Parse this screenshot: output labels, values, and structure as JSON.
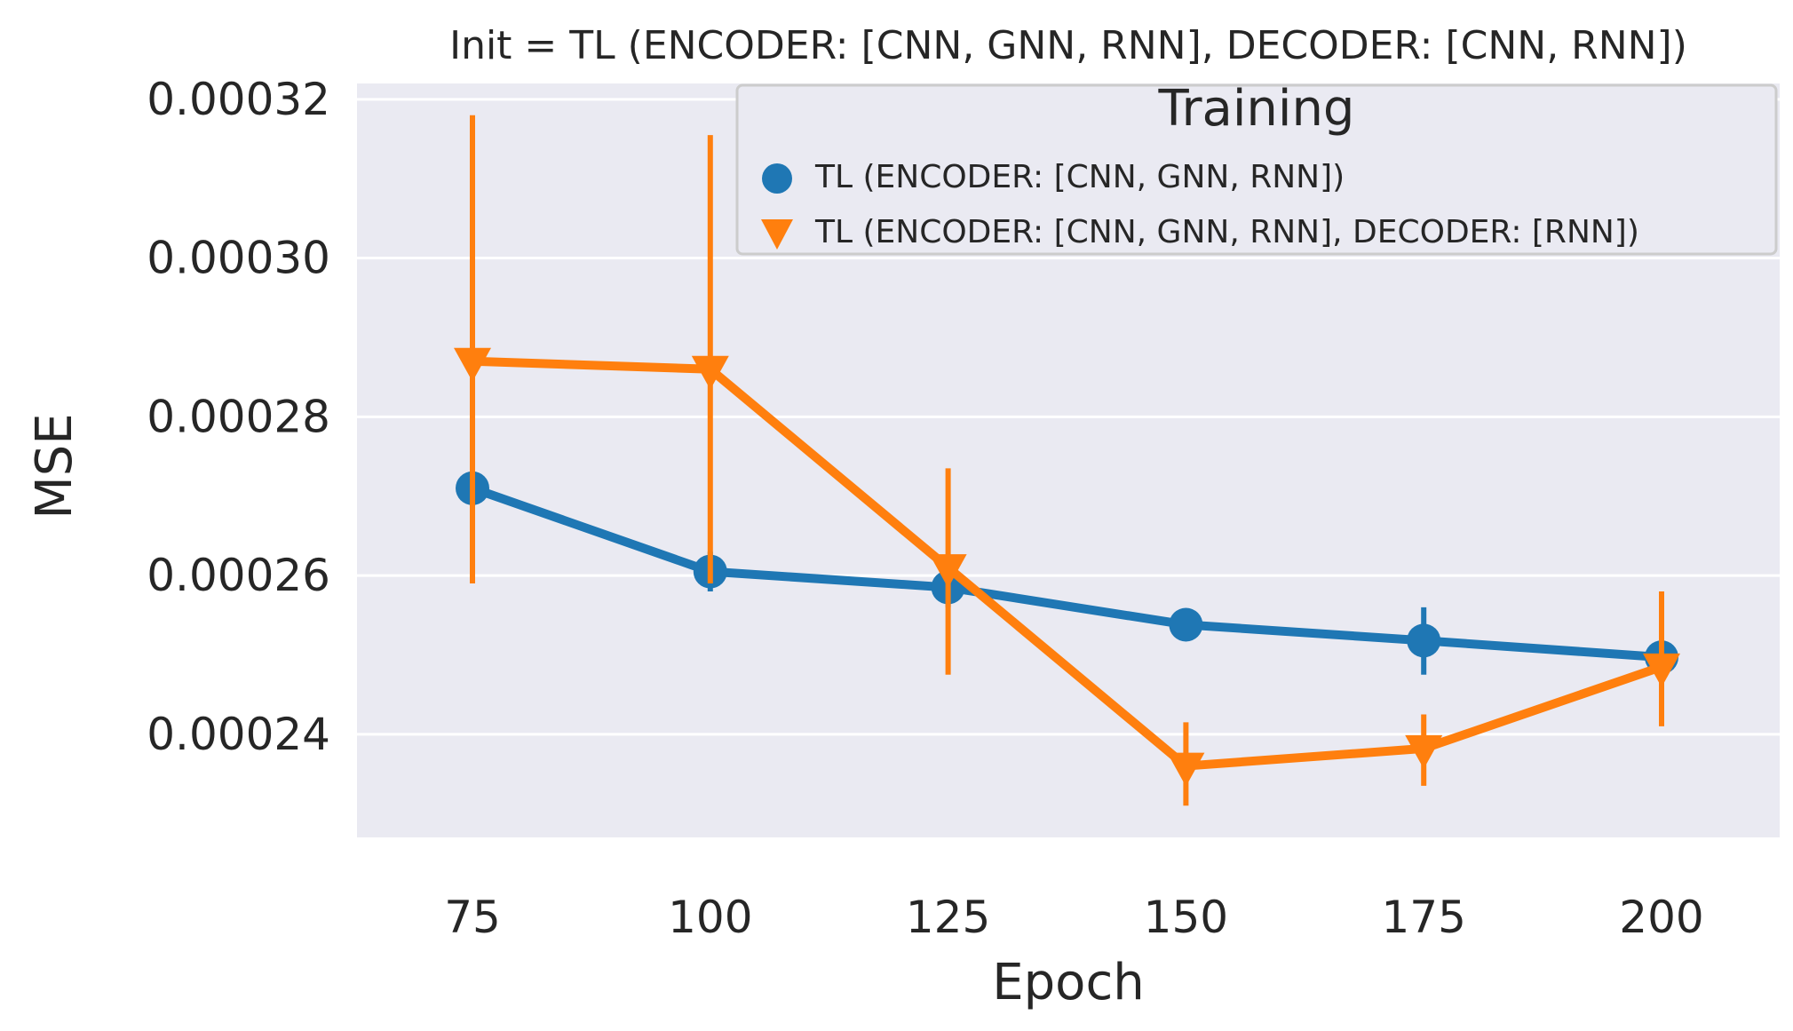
{
  "chart_data": {
    "type": "line",
    "title": "Init = TL (ENCODER: [CNN, GNN, RNN], DECODER: [CNN, RNN])",
    "xlabel": "Epoch",
    "ylabel": "MSE",
    "categories": [
      "75",
      "100",
      "125",
      "150",
      "175",
      "200"
    ],
    "ylim": [
      0.000227,
      0.000322
    ],
    "yticks": [
      0.00024,
      0.00026,
      0.00028,
      0.0003,
      0.00032
    ],
    "ytick_labels": [
      "0.00024",
      "0.00026",
      "0.00028",
      "0.00030",
      "0.00032"
    ],
    "grid": true,
    "legend": {
      "title": "Training",
      "placement": "top-right"
    },
    "series": [
      {
        "name": "TL (ENCODER: [CNN, GNN, RNN])",
        "color": "#1f77b4",
        "marker": "circle",
        "values": [
          0.000271,
          0.0002605,
          0.0002585,
          0.0002538,
          0.0002518,
          0.0002497
        ],
        "err_low": [
          0.000266,
          0.000258,
          0.000256,
          0.0002525,
          0.0002475,
          0.0002485
        ],
        "err_high": [
          0.000276,
          0.000263,
          0.000261,
          0.000255,
          0.000256,
          0.000251
        ]
      },
      {
        "name": "TL (ENCODER: [CNN, GNN, RNN], DECODER: [RNN])",
        "color": "#ff7f0e",
        "marker": "triangle-down",
        "values": [
          0.000287,
          0.000286,
          0.000261,
          0.000236,
          0.0002382,
          0.0002485
        ],
        "err_low": [
          0.000259,
          0.000259,
          0.0002475,
          0.000231,
          0.0002335,
          0.000241
        ],
        "err_high": [
          0.000318,
          0.0003155,
          0.0002735,
          0.0002415,
          0.0002425,
          0.000258
        ]
      }
    ]
  }
}
